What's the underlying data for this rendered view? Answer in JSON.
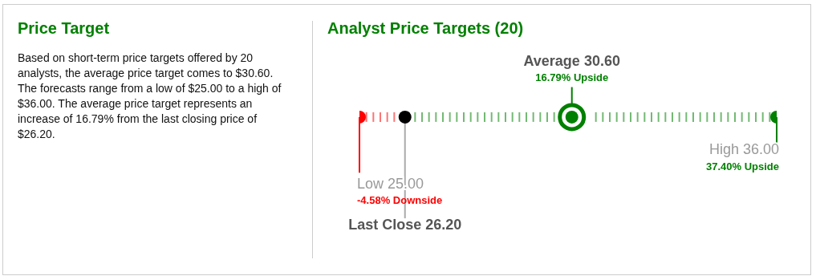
{
  "chart_data": [
    {
      "type": "other",
      "title": "Price Target",
      "annotations": [
        "Based on short-term price targets offered by 20 analysts, the average price target comes to $30.60. The forecasts range from a low of $25.00 to a high of $36.00. The average price target represents an increase of 16.79% from the last closing price of $26.20."
      ]
    },
    {
      "type": "other",
      "title": "Analyst Price Targets (20)",
      "categories": [
        "Low",
        "Last Close",
        "Average",
        "High"
      ],
      "values": [
        25,
        26.2,
        30.6,
        36
      ],
      "value_labels": [
        "25.00",
        "26.20",
        "30.60",
        "36.00"
      ],
      "colors": [
        "#ff0000",
        "#000000",
        "#008000",
        "#008000"
      ],
      "annotations": [
        {
          "text": "-4.58% Downside",
          "x": "Low"
        },
        {
          "text": "16.79% Upside",
          "x": "Average"
        },
        {
          "text": "37.40% Upside",
          "x": "High"
        }
      ]
    }
  ]
}
